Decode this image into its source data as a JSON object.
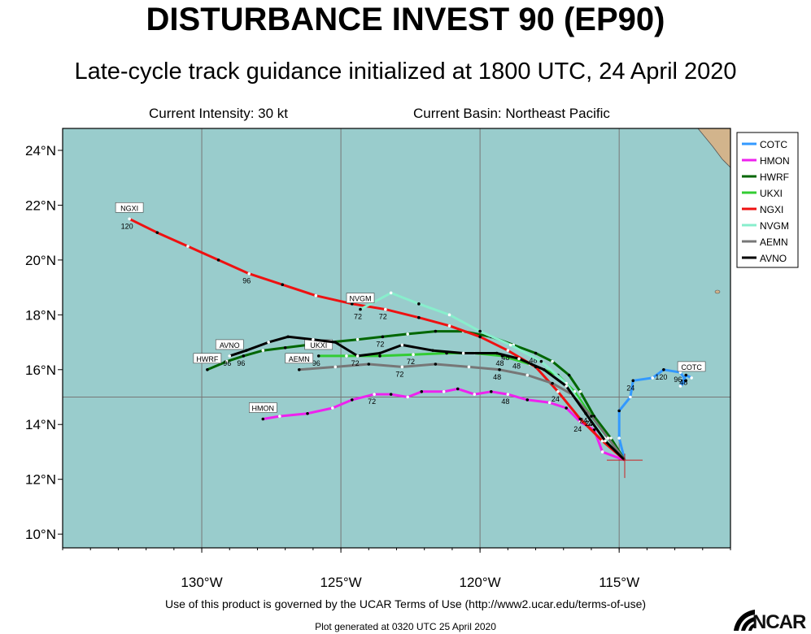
{
  "header": {
    "title": "DISTURBANCE INVEST 90 (EP90)",
    "subtitle": "Late-cycle track guidance initialized at 1800 UTC, 24 April 2020",
    "intensity": "Current Intensity: 30 kt",
    "basin": "Current Basin: Northeast Pacific"
  },
  "footer": {
    "terms": "Use of this product is governed by the UCAR Terms of Use (http://www2.ucar.edu/terms-of-use)",
    "generated": "Plot generated at 0320 UTC   25 April 2020",
    "logo_text": "NCAR"
  },
  "colors": {
    "ocean": "#99CCCC",
    "land": "#D2B48C",
    "COTC": "#3399FF",
    "HMON": "#EE22EE",
    "HWRF": "#006600",
    "UKXI": "#33CC33",
    "NGXI": "#EE1111",
    "NVGM": "#88EECC",
    "AEMN": "#777777",
    "AVNO": "#000000"
  },
  "chart_data": {
    "type": "line",
    "xlim": [
      -135,
      -111
    ],
    "ylim": [
      9.5,
      24.8
    ],
    "x_ticks": [
      -130,
      -125,
      -120,
      -115
    ],
    "x_tick_labels": [
      "130°W",
      "125°W",
      "120°W",
      "115°W"
    ],
    "y_ticks": [
      10,
      12,
      14,
      16,
      18,
      20,
      22,
      24
    ],
    "y_tick_labels": [
      "10°N",
      "12°N",
      "14°N",
      "16°N",
      "18°N",
      "20°N",
      "22°N",
      "24°N"
    ],
    "grid": true,
    "legend_position": "top-right",
    "initial_position": {
      "lon": -114.8,
      "lat": 12.7
    },
    "series": [
      {
        "name": "COTC",
        "points": [
          [
            -114.8,
            12.7
          ],
          [
            -115,
            13.5
          ],
          [
            -115,
            14.5
          ],
          [
            -114.6,
            15
          ],
          [
            -114.5,
            15.6
          ],
          [
            -113.8,
            15.7
          ],
          [
            -113.4,
            16
          ],
          [
            -112.8,
            15.9
          ],
          [
            -112.6,
            15.6
          ],
          [
            -112.8,
            15.4
          ],
          [
            -112.6,
            15.8
          ],
          [
            -112.4,
            15.7
          ]
        ],
        "hour_labels": [
          {
            "h": "24",
            "at": 4
          },
          {
            "h": "96",
            "at": 7
          },
          {
            "h": "120",
            "at": 6
          },
          {
            "h": "48",
            "at": 10
          }
        ],
        "tag": "COTC"
      },
      {
        "name": "HMON",
        "points": [
          [
            -114.8,
            12.7
          ],
          [
            -115.6,
            13
          ],
          [
            -115.9,
            13.8
          ],
          [
            -116.4,
            14.1
          ],
          [
            -116.9,
            14.6
          ],
          [
            -117.5,
            14.8
          ],
          [
            -118.3,
            14.9
          ],
          [
            -119,
            15.1
          ],
          [
            -119.6,
            15.2
          ],
          [
            -120.2,
            15.1
          ],
          [
            -120.8,
            15.3
          ],
          [
            -121.3,
            15.2
          ],
          [
            -122.1,
            15.2
          ],
          [
            -122.6,
            15
          ],
          [
            -123.2,
            15.1
          ],
          [
            -123.8,
            15.1
          ],
          [
            -124.6,
            14.9
          ],
          [
            -125.3,
            14.6
          ],
          [
            -126.2,
            14.4
          ],
          [
            -127.2,
            14.3
          ],
          [
            -127.8,
            14.2
          ]
        ],
        "hour_labels": [
          {
            "h": "24",
            "at": 3
          },
          {
            "h": "48",
            "at": 7
          },
          {
            "h": "72",
            "at": 15
          }
        ],
        "tag": "HMON"
      },
      {
        "name": "HWRF",
        "points": [
          [
            -114.8,
            12.7
          ],
          [
            -115.3,
            13.5
          ],
          [
            -115.9,
            14.3
          ],
          [
            -116.4,
            15.2
          ],
          [
            -116.8,
            15.8
          ],
          [
            -117.4,
            16.3
          ],
          [
            -118,
            16.6
          ],
          [
            -118.8,
            16.9
          ],
          [
            -119.6,
            17.2
          ],
          [
            -120.6,
            17.4
          ],
          [
            -121.6,
            17.4
          ],
          [
            -122.6,
            17.3
          ],
          [
            -123.5,
            17.2
          ],
          [
            -124.4,
            17.1
          ],
          [
            -125.4,
            17.0
          ],
          [
            -126.2,
            16.9
          ],
          [
            -127,
            16.8
          ],
          [
            -127.8,
            16.7
          ],
          [
            -128.5,
            16.5
          ],
          [
            -129.1,
            16.3
          ],
          [
            -129.8,
            16.0
          ]
        ],
        "hour_labels": [
          {
            "h": "24",
            "at": 2
          },
          {
            "h": "48",
            "at": 6
          },
          {
            "h": "72",
            "at": 12
          },
          {
            "h": "96",
            "at": 18
          }
        ],
        "tag": "HWRF"
      },
      {
        "name": "UKXI",
        "points": [
          [
            -114.8,
            12.7
          ],
          [
            -115.4,
            13.5
          ],
          [
            -116,
            14.3
          ],
          [
            -116.6,
            15.2
          ],
          [
            -117.2,
            15.8
          ],
          [
            -118.2,
            16.2
          ],
          [
            -119.2,
            16.5
          ],
          [
            -120.2,
            16.6
          ],
          [
            -121.2,
            16.6
          ],
          [
            -122.4,
            16.55
          ],
          [
            -123.6,
            16.5
          ],
          [
            -124.8,
            16.5
          ],
          [
            -125.8,
            16.5
          ]
        ],
        "hour_labels": [
          {
            "h": "24",
            "at": 2
          },
          {
            "h": "48",
            "at": 6
          },
          {
            "h": "72",
            "at": 9
          },
          {
            "h": "96",
            "at": 12
          }
        ],
        "tag": "UKXI"
      },
      {
        "name": "NGXI",
        "points": [
          [
            -114.8,
            12.7
          ],
          [
            -115.6,
            13.4
          ],
          [
            -116.4,
            14.2
          ],
          [
            -117.2,
            15.2
          ],
          [
            -118,
            16.1
          ],
          [
            -119,
            16.7
          ],
          [
            -120,
            17.2
          ],
          [
            -121.1,
            17.6
          ],
          [
            -122.2,
            17.9
          ],
          [
            -123.4,
            18.2
          ],
          [
            -124.6,
            18.4
          ],
          [
            -125.9,
            18.7
          ],
          [
            -127.1,
            19.1
          ],
          [
            -128.3,
            19.5
          ],
          [
            -129.4,
            20
          ],
          [
            -130.5,
            20.5
          ],
          [
            -131.6,
            21
          ],
          [
            -132.6,
            21.5
          ]
        ],
        "hour_labels": [
          {
            "h": "24",
            "at": 3
          },
          {
            "h": "48",
            "at": 5
          },
          {
            "h": "72",
            "at": 9
          },
          {
            "h": "96",
            "at": 13
          },
          {
            "h": "120",
            "at": 17
          }
        ],
        "tag": "NGXI"
      },
      {
        "name": "NVGM",
        "points": [
          [
            -114.8,
            12.7
          ],
          [
            -115.5,
            13.5
          ],
          [
            -116.2,
            14.5
          ],
          [
            -116.9,
            15.5
          ],
          [
            -117.8,
            16.3
          ],
          [
            -118.9,
            16.9
          ],
          [
            -120,
            17.4
          ],
          [
            -121.1,
            18
          ],
          [
            -122.2,
            18.4
          ],
          [
            -123.2,
            18.8
          ],
          [
            -124.3,
            18.2
          ]
        ],
        "hour_labels": [
          {
            "h": "72",
            "at": 10
          }
        ],
        "tag": "NVGM"
      },
      {
        "name": "AEMN",
        "points": [
          [
            -114.8,
            12.7
          ],
          [
            -115.4,
            13.5
          ],
          [
            -116,
            14.3
          ],
          [
            -116.7,
            15.1
          ],
          [
            -117.4,
            15.5
          ],
          [
            -118.3,
            15.8
          ],
          [
            -119.3,
            16.0
          ],
          [
            -120.4,
            16.1
          ],
          [
            -121.6,
            16.2
          ],
          [
            -122.8,
            16.1
          ],
          [
            -124,
            16.2
          ],
          [
            -125.2,
            16.1
          ],
          [
            -126.5,
            16.0
          ]
        ],
        "hour_labels": [
          {
            "h": "24",
            "at": 2
          },
          {
            "h": "48",
            "at": 6
          },
          {
            "h": "72",
            "at": 9
          }
        ],
        "tag": "AEMN"
      },
      {
        "name": "AVNO",
        "points": [
          [
            -114.8,
            12.7
          ],
          [
            -115.5,
            13.4
          ],
          [
            -116.2,
            14.4
          ],
          [
            -116.9,
            15.4
          ],
          [
            -117.7,
            16.0
          ],
          [
            -118.6,
            16.4
          ],
          [
            -119.4,
            16.6
          ],
          [
            -120.6,
            16.6
          ],
          [
            -121.7,
            16.7
          ],
          [
            -122.8,
            16.9
          ],
          [
            -123.6,
            16.6
          ],
          [
            -124.4,
            16.5
          ],
          [
            -125.2,
            17.0
          ],
          [
            -126,
            17.1
          ],
          [
            -126.9,
            17.2
          ],
          [
            -127.6,
            17.0
          ],
          [
            -128.4,
            16.7
          ],
          [
            -129,
            16.5
          ]
        ],
        "hour_labels": [
          {
            "h": "24",
            "at": 2
          },
          {
            "h": "48",
            "at": 5
          },
          {
            "h": "72",
            "at": 11
          },
          {
            "h": "96",
            "at": 17
          }
        ],
        "tag": "AVNO"
      }
    ]
  }
}
